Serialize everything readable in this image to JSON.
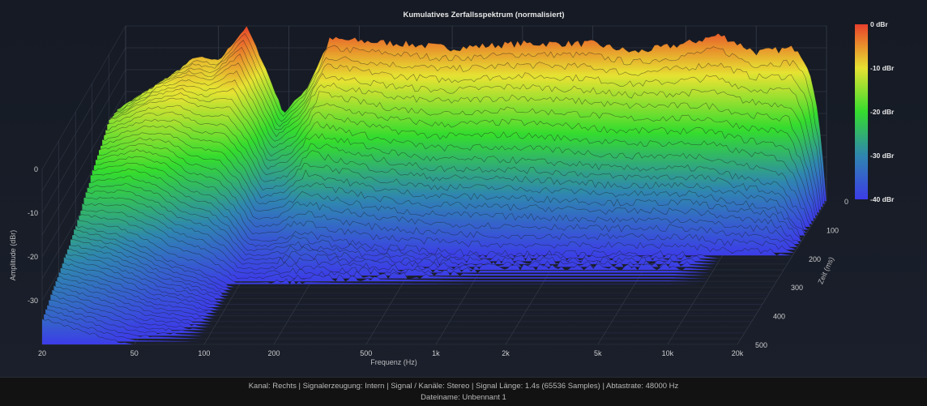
{
  "chart_data": {
    "type": "waterfall",
    "title": "Kumulatives Zerfallsspektrum (normalisiert)",
    "xlabel": "Frequenz (Hz)",
    "ylabel": "Amplitude (dBr)",
    "zlabel": "Zeit (ms)",
    "x_scale": "log",
    "xlim": [
      20,
      20000
    ],
    "ylim": [
      -40,
      0
    ],
    "zlim": [
      0,
      500
    ],
    "x_ticks": [
      "20",
      "50",
      "100",
      "200",
      "500",
      "1k",
      "2k",
      "5k",
      "10k",
      "20k"
    ],
    "x_tick_values": [
      20,
      50,
      100,
      200,
      500,
      1000,
      2000,
      5000,
      10000,
      20000
    ],
    "y_ticks": [
      "0",
      "-10",
      "-20",
      "-30"
    ],
    "y_tick_values": [
      0,
      -10,
      -20,
      -30
    ],
    "z_ticks": [
      "0",
      "100",
      "200",
      "300",
      "400",
      "500"
    ],
    "z_tick_values": [
      0,
      100,
      200,
      300,
      400,
      500
    ],
    "grid": true,
    "colorbar": {
      "labels": [
        "0 dBr",
        "-10 dBr",
        "-20 dBr",
        "-30 dBr",
        "-40 dBr"
      ],
      "stops": [
        {
          "db": 0,
          "color": "#e8402c"
        },
        {
          "db": -5,
          "color": "#e8922c"
        },
        {
          "db": -10,
          "color": "#e6e232"
        },
        {
          "db": -20,
          "color": "#34dc2e"
        },
        {
          "db": -30,
          "color": "#2f86b0"
        },
        {
          "db": -40,
          "color": "#3c3ce8"
        }
      ]
    },
    "frequencies": [
      20,
      30,
      40,
      50,
      66,
      80,
      95,
      120,
      150,
      300,
      500,
      1000,
      2000,
      3000,
      5000,
      7000,
      10000,
      15000,
      17000,
      19000,
      20000
    ],
    "time_slices": [
      {
        "t": 0,
        "values": [
          -18,
          -12,
          -7,
          -8,
          0,
          -10,
          -20,
          -14,
          -3,
          -4,
          -5,
          -4,
          -4,
          -6,
          -4,
          -2,
          -6,
          -5,
          -10,
          -25,
          -40
        ]
      },
      {
        "t": 50,
        "values": [
          -16,
          -10,
          -8,
          -9,
          -5,
          -14,
          -22,
          -18,
          -10,
          -13,
          -14,
          -13,
          -14,
          -15,
          -15,
          -15,
          -17,
          -18,
          -24,
          -34,
          -40
        ]
      },
      {
        "t": 100,
        "values": [
          -15,
          -11,
          -10,
          -12,
          -12,
          -18,
          -26,
          -24,
          -18,
          -22,
          -24,
          -24,
          -25,
          -26,
          -26,
          -26,
          -28,
          -30,
          -34,
          -38,
          -40
        ]
      },
      {
        "t": 200,
        "values": [
          -20,
          -18,
          -20,
          -24,
          -26,
          -30,
          -36,
          -36,
          -34,
          -37,
          -38,
          -39,
          -39,
          -39,
          -39,
          -39,
          -40,
          -40,
          -40,
          -40,
          -40
        ]
      },
      {
        "t": 300,
        "values": [
          -26,
          -28,
          -31,
          -34,
          -36,
          -38,
          -40,
          -40,
          -40,
          -40,
          -40,
          -40,
          -40,
          -40,
          -40,
          -40,
          -40,
          -40,
          -40,
          -40,
          -40
        ]
      },
      {
        "t": 500,
        "values": [
          -34,
          -37,
          -39,
          -40,
          -40,
          -40,
          -40,
          -40,
          -40,
          -40,
          -40,
          -40,
          -40,
          -40,
          -40,
          -40,
          -40,
          -40,
          -40,
          -40,
          -40
        ]
      }
    ]
  },
  "status": {
    "line1": "Kanal: Rechts  |  Signalerzeugung: Intern  |  Signal / Kanäle: Stereo  |  Signal Länge: 1.4s (65536 Samples)  |  Abtastrate: 48000 Hz",
    "line2": "Dateiname: Unbennant 1"
  }
}
